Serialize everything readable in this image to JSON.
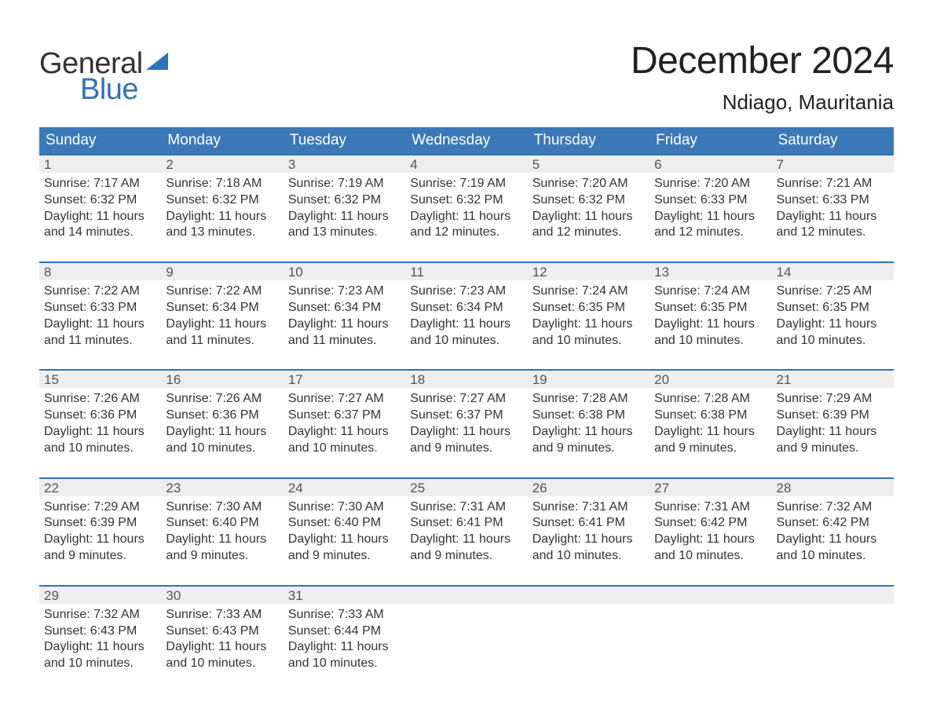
{
  "brand": {
    "general": "General",
    "blue": "Blue",
    "general_color": "#333333",
    "blue_color": "#2f74b5",
    "sail_color": "#2f74b5"
  },
  "header": {
    "month_title": "December 2024",
    "location": "Ndiago, Mauritania"
  },
  "colors": {
    "header_bg": "#3b78b8",
    "header_text": "#ffffff",
    "daynum_bg": "#eeeeee",
    "week_border": "#2f74b5",
    "body_text": "#333333",
    "page_bg": "#ffffff"
  },
  "layout": {
    "columns": 7,
    "type": "calendar-table"
  },
  "weekdays": [
    "Sunday",
    "Monday",
    "Tuesday",
    "Wednesday",
    "Thursday",
    "Friday",
    "Saturday"
  ],
  "weeks": [
    [
      {
        "day": "1",
        "sunrise": "Sunrise: 7:17 AM",
        "sunset": "Sunset: 6:32 PM",
        "daylight1": "Daylight: 11 hours",
        "daylight2": "and 14 minutes."
      },
      {
        "day": "2",
        "sunrise": "Sunrise: 7:18 AM",
        "sunset": "Sunset: 6:32 PM",
        "daylight1": "Daylight: 11 hours",
        "daylight2": "and 13 minutes."
      },
      {
        "day": "3",
        "sunrise": "Sunrise: 7:19 AM",
        "sunset": "Sunset: 6:32 PM",
        "daylight1": "Daylight: 11 hours",
        "daylight2": "and 13 minutes."
      },
      {
        "day": "4",
        "sunrise": "Sunrise: 7:19 AM",
        "sunset": "Sunset: 6:32 PM",
        "daylight1": "Daylight: 11 hours",
        "daylight2": "and 12 minutes."
      },
      {
        "day": "5",
        "sunrise": "Sunrise: 7:20 AM",
        "sunset": "Sunset: 6:32 PM",
        "daylight1": "Daylight: 11 hours",
        "daylight2": "and 12 minutes."
      },
      {
        "day": "6",
        "sunrise": "Sunrise: 7:20 AM",
        "sunset": "Sunset: 6:33 PM",
        "daylight1": "Daylight: 11 hours",
        "daylight2": "and 12 minutes."
      },
      {
        "day": "7",
        "sunrise": "Sunrise: 7:21 AM",
        "sunset": "Sunset: 6:33 PM",
        "daylight1": "Daylight: 11 hours",
        "daylight2": "and 12 minutes."
      }
    ],
    [
      {
        "day": "8",
        "sunrise": "Sunrise: 7:22 AM",
        "sunset": "Sunset: 6:33 PM",
        "daylight1": "Daylight: 11 hours",
        "daylight2": "and 11 minutes."
      },
      {
        "day": "9",
        "sunrise": "Sunrise: 7:22 AM",
        "sunset": "Sunset: 6:34 PM",
        "daylight1": "Daylight: 11 hours",
        "daylight2": "and 11 minutes."
      },
      {
        "day": "10",
        "sunrise": "Sunrise: 7:23 AM",
        "sunset": "Sunset: 6:34 PM",
        "daylight1": "Daylight: 11 hours",
        "daylight2": "and 11 minutes."
      },
      {
        "day": "11",
        "sunrise": "Sunrise: 7:23 AM",
        "sunset": "Sunset: 6:34 PM",
        "daylight1": "Daylight: 11 hours",
        "daylight2": "and 10 minutes."
      },
      {
        "day": "12",
        "sunrise": "Sunrise: 7:24 AM",
        "sunset": "Sunset: 6:35 PM",
        "daylight1": "Daylight: 11 hours",
        "daylight2": "and 10 minutes."
      },
      {
        "day": "13",
        "sunrise": "Sunrise: 7:24 AM",
        "sunset": "Sunset: 6:35 PM",
        "daylight1": "Daylight: 11 hours",
        "daylight2": "and 10 minutes."
      },
      {
        "day": "14",
        "sunrise": "Sunrise: 7:25 AM",
        "sunset": "Sunset: 6:35 PM",
        "daylight1": "Daylight: 11 hours",
        "daylight2": "and 10 minutes."
      }
    ],
    [
      {
        "day": "15",
        "sunrise": "Sunrise: 7:26 AM",
        "sunset": "Sunset: 6:36 PM",
        "daylight1": "Daylight: 11 hours",
        "daylight2": "and 10 minutes."
      },
      {
        "day": "16",
        "sunrise": "Sunrise: 7:26 AM",
        "sunset": "Sunset: 6:36 PM",
        "daylight1": "Daylight: 11 hours",
        "daylight2": "and 10 minutes."
      },
      {
        "day": "17",
        "sunrise": "Sunrise: 7:27 AM",
        "sunset": "Sunset: 6:37 PM",
        "daylight1": "Daylight: 11 hours",
        "daylight2": "and 10 minutes."
      },
      {
        "day": "18",
        "sunrise": "Sunrise: 7:27 AM",
        "sunset": "Sunset: 6:37 PM",
        "daylight1": "Daylight: 11 hours",
        "daylight2": "and 9 minutes."
      },
      {
        "day": "19",
        "sunrise": "Sunrise: 7:28 AM",
        "sunset": "Sunset: 6:38 PM",
        "daylight1": "Daylight: 11 hours",
        "daylight2": "and 9 minutes."
      },
      {
        "day": "20",
        "sunrise": "Sunrise: 7:28 AM",
        "sunset": "Sunset: 6:38 PM",
        "daylight1": "Daylight: 11 hours",
        "daylight2": "and 9 minutes."
      },
      {
        "day": "21",
        "sunrise": "Sunrise: 7:29 AM",
        "sunset": "Sunset: 6:39 PM",
        "daylight1": "Daylight: 11 hours",
        "daylight2": "and 9 minutes."
      }
    ],
    [
      {
        "day": "22",
        "sunrise": "Sunrise: 7:29 AM",
        "sunset": "Sunset: 6:39 PM",
        "daylight1": "Daylight: 11 hours",
        "daylight2": "and 9 minutes."
      },
      {
        "day": "23",
        "sunrise": "Sunrise: 7:30 AM",
        "sunset": "Sunset: 6:40 PM",
        "daylight1": "Daylight: 11 hours",
        "daylight2": "and 9 minutes."
      },
      {
        "day": "24",
        "sunrise": "Sunrise: 7:30 AM",
        "sunset": "Sunset: 6:40 PM",
        "daylight1": "Daylight: 11 hours",
        "daylight2": "and 9 minutes."
      },
      {
        "day": "25",
        "sunrise": "Sunrise: 7:31 AM",
        "sunset": "Sunset: 6:41 PM",
        "daylight1": "Daylight: 11 hours",
        "daylight2": "and 9 minutes."
      },
      {
        "day": "26",
        "sunrise": "Sunrise: 7:31 AM",
        "sunset": "Sunset: 6:41 PM",
        "daylight1": "Daylight: 11 hours",
        "daylight2": "and 10 minutes."
      },
      {
        "day": "27",
        "sunrise": "Sunrise: 7:31 AM",
        "sunset": "Sunset: 6:42 PM",
        "daylight1": "Daylight: 11 hours",
        "daylight2": "and 10 minutes."
      },
      {
        "day": "28",
        "sunrise": "Sunrise: 7:32 AM",
        "sunset": "Sunset: 6:42 PM",
        "daylight1": "Daylight: 11 hours",
        "daylight2": "and 10 minutes."
      }
    ],
    [
      {
        "day": "29",
        "sunrise": "Sunrise: 7:32 AM",
        "sunset": "Sunset: 6:43 PM",
        "daylight1": "Daylight: 11 hours",
        "daylight2": "and 10 minutes."
      },
      {
        "day": "30",
        "sunrise": "Sunrise: 7:33 AM",
        "sunset": "Sunset: 6:43 PM",
        "daylight1": "Daylight: 11 hours",
        "daylight2": "and 10 minutes."
      },
      {
        "day": "31",
        "sunrise": "Sunrise: 7:33 AM",
        "sunset": "Sunset: 6:44 PM",
        "daylight1": "Daylight: 11 hours",
        "daylight2": "and 10 minutes."
      },
      null,
      null,
      null,
      null
    ]
  ]
}
